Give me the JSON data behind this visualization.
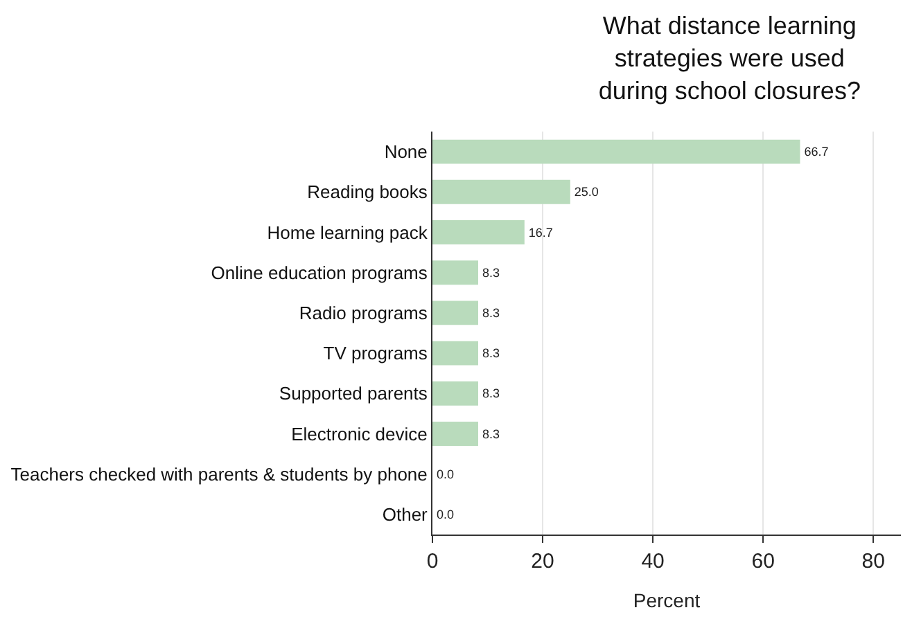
{
  "chart_data": {
    "type": "bar",
    "orientation": "horizontal",
    "title": "What distance learning strategies were used during school closures?",
    "xlabel": "Percent",
    "categories": [
      "None",
      "Reading books",
      "Home learning pack",
      "Online education programs",
      "Radio programs",
      "TV programs",
      "Supported parents",
      "Electronic device",
      "Teachers checked with parents & students by phone",
      "Other"
    ],
    "values": [
      66.7,
      25.0,
      16.7,
      8.3,
      8.3,
      8.3,
      8.3,
      8.3,
      0.0,
      0.0
    ],
    "value_labels": [
      "66.7",
      "25.0",
      "16.7",
      "8.3",
      "8.3",
      "8.3",
      "8.3",
      "8.3",
      "0.0",
      "0.0"
    ],
    "color": "#b9dbbc",
    "xlim": [
      0,
      85
    ],
    "xticks": [
      0,
      20,
      40,
      60,
      80
    ],
    "grid": "x"
  }
}
